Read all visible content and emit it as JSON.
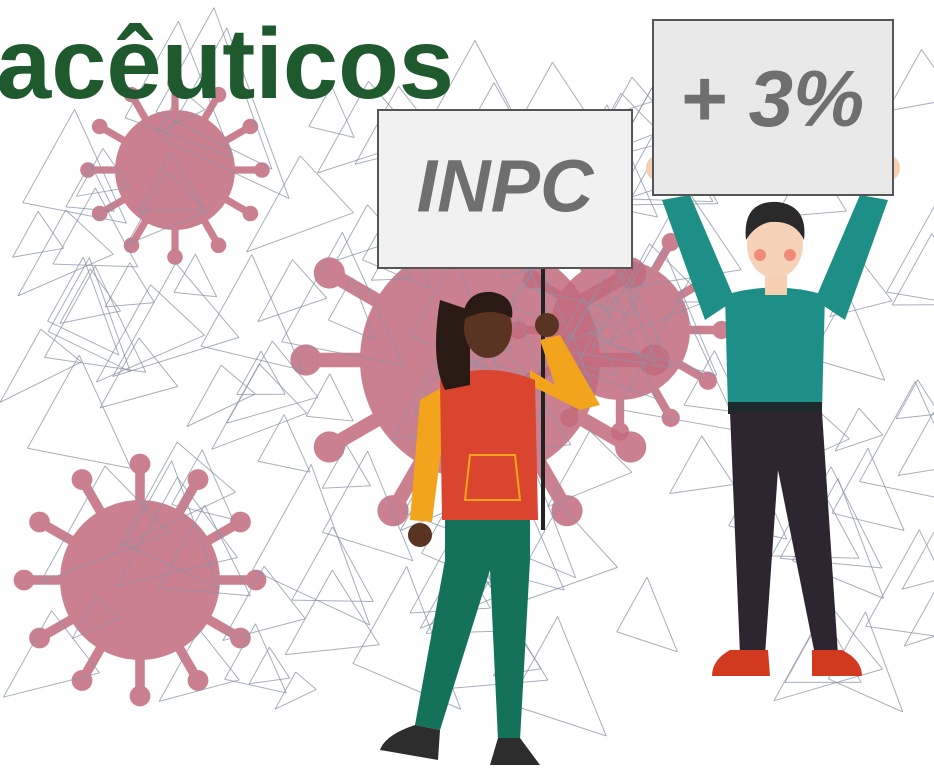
{
  "header": {
    "title": "acêuticos"
  },
  "signs": [
    {
      "text": "INPC"
    },
    {
      "text": "+ 3%"
    }
  ]
}
